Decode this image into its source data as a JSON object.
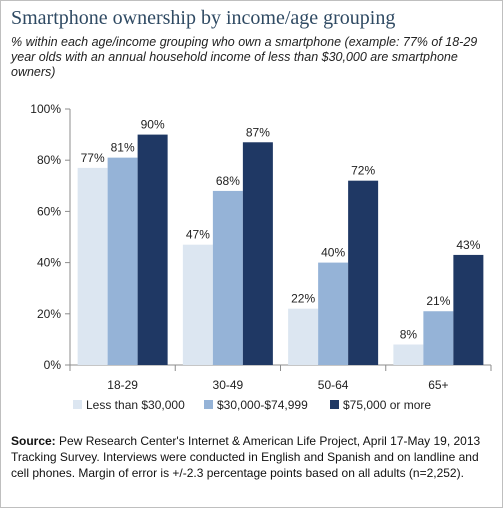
{
  "title": "Smartphone ownership by income/age grouping",
  "subtitle": "% within each age/income grouping who own a smartphone (example: 77% of 18-29 year olds with an annual household income of less than $30,000 are smartphone owners)",
  "chart_data": {
    "type": "bar",
    "categories": [
      "18-29",
      "30-49",
      "50-64",
      "65+"
    ],
    "series": [
      {
        "name": "Less than $30,000",
        "color": "#dce6f1",
        "values": [
          77,
          47,
          22,
          8
        ]
      },
      {
        "name": "$30,000-$74,999",
        "color": "#95b3d7",
        "values": [
          81,
          68,
          40,
          21
        ]
      },
      {
        "name": "$75,000 or more",
        "color": "#1f3864",
        "values": [
          90,
          87,
          72,
          43
        ]
      }
    ],
    "ylim": [
      0,
      100
    ],
    "yticks": [
      0,
      20,
      40,
      60,
      80,
      100
    ],
    "ytick_labels": [
      "0%",
      "20%",
      "40%",
      "60%",
      "80%",
      "100%"
    ],
    "value_suffix": "%",
    "grid": false,
    "legend_position": "bottom"
  },
  "source": {
    "label": "Source:",
    "text": " Pew Research Center's Internet & American Life Project, April 17-May 19, 2013 Tracking Survey. Interviews were conducted in English and Spanish and on landline and cell phones.  Margin of error is +/-2.3 percentage points based on all adults (n=2,252)."
  }
}
